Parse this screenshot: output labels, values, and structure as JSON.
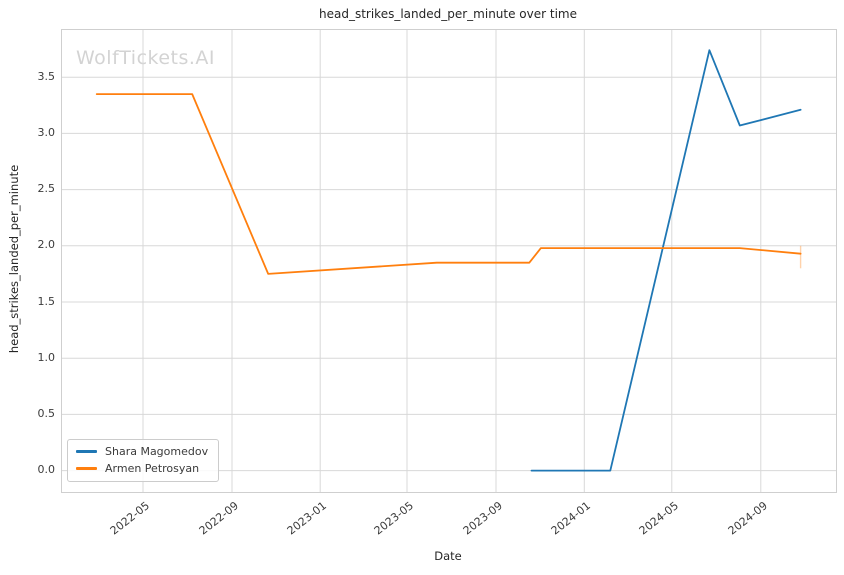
{
  "watermark": "WolfTickets.AI",
  "chart_data": {
    "type": "line",
    "title": "head_strikes_landed_per_minute over time",
    "xlabel": "Date",
    "ylabel": "head_strikes_landed_per_minute",
    "grid": true,
    "legend_position": "lower left",
    "background_color": "#ffffff",
    "grid_color": "#d8d8d8",
    "x_domain": [
      "2022-01-09",
      "2024-12-14"
    ],
    "y_domain": [
      -0.19,
      3.92
    ],
    "x_ticks": [
      {
        "date": "2022-05-01",
        "label": "2022-05"
      },
      {
        "date": "2022-09-01",
        "label": "2022-09"
      },
      {
        "date": "2023-01-01",
        "label": "2023-01"
      },
      {
        "date": "2023-05-01",
        "label": "2023-05"
      },
      {
        "date": "2023-09-01",
        "label": "2023-09"
      },
      {
        "date": "2024-01-01",
        "label": "2024-01"
      },
      {
        "date": "2024-05-01",
        "label": "2024-05"
      },
      {
        "date": "2024-09-01",
        "label": "2024-09"
      }
    ],
    "y_ticks": [
      0.0,
      0.5,
      1.0,
      1.5,
      2.0,
      2.5,
      3.0,
      3.5
    ],
    "series": [
      {
        "name": "Shara Magomedov",
        "color": "#1f77b4",
        "points": [
          [
            "2023-10-20",
            0.0
          ],
          [
            "2024-02-06",
            0.0
          ],
          [
            "2024-06-22",
            3.74
          ],
          [
            "2024-08-03",
            3.07
          ],
          [
            "2024-10-26",
            3.21
          ]
        ]
      },
      {
        "name": "Armen Petrosyan",
        "color": "#ff7f0e",
        "points": [
          [
            "2022-02-26",
            3.35
          ],
          [
            "2022-07-08",
            3.35
          ],
          [
            "2022-10-21",
            1.75
          ],
          [
            "2023-06-11",
            1.85
          ],
          [
            "2023-10-17",
            1.85
          ],
          [
            "2023-11-02",
            1.98
          ],
          [
            "2024-08-03",
            1.98
          ],
          [
            "2024-10-26",
            1.93
          ]
        ],
        "error_bar_last": {
          "low": 1.8,
          "high": 2.0
        }
      }
    ]
  }
}
